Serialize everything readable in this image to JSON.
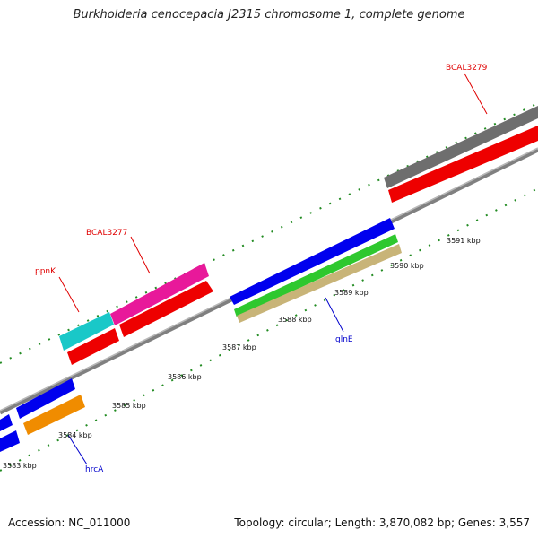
{
  "title": "Burkholderia cenocepacia J2315 chromosome 1, complete genome",
  "footer": {
    "accession": "Accession: NC_011000",
    "summary": "Topology: circular; Length: 3,870,082 bp; Genes: 3,557"
  },
  "ticks": [
    "3583 kbp",
    "3584 kbp",
    "3585 kbp",
    "3586 kbp",
    "3587 kbp",
    "3588 kbp",
    "3589 kbp",
    "3590 kbp",
    "3591 kbp"
  ],
  "gene_labels": [
    {
      "text": "BCAL3279",
      "color": "#e00000"
    },
    {
      "text": "BCAL3277",
      "color": "#e00000"
    },
    {
      "text": "ppnK",
      "color": "#e00000"
    },
    {
      "text": "glnE",
      "color": "#0000cc"
    },
    {
      "text": "hrcA",
      "color": "#0000cc"
    }
  ],
  "colors": {
    "backbone": "#8c8c8c",
    "tick_green": "#228b22",
    "cds_blue": "#0000ee",
    "cds_red": "#ee0000",
    "cds_magenta": "#e8199a",
    "cds_cyan": "#19c8c8",
    "cds_orange": "#f08c00",
    "cds_gray": "#6e6e6e",
    "cds_green": "#2ec82e",
    "cds_tan": "#c8b478"
  }
}
